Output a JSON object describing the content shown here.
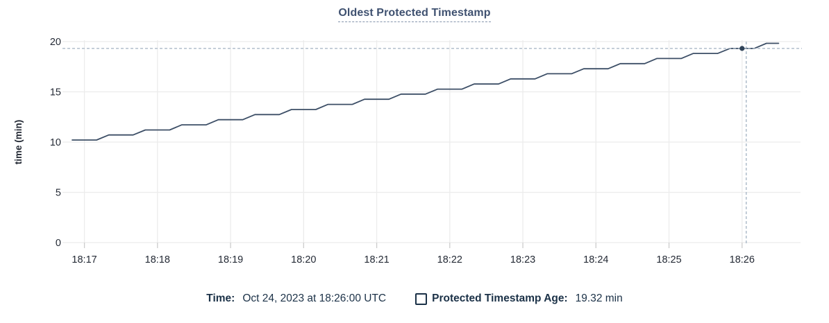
{
  "title": {
    "text": "Oldest Protected Timestamp"
  },
  "legend": {
    "time_key": "Time:",
    "time_value": "Oct 24, 2023 at 18:26:00 UTC",
    "series_key": "Protected Timestamp Age:",
    "series_value": "19.32 min",
    "checkbox_checked": false
  },
  "colors": {
    "line": "#3c4e66",
    "dot": "#2f4258",
    "crosshair": "#a2b2c2",
    "grid": "#ececec",
    "tick": "#cccccc",
    "axis_text": "#242a35",
    "title_text": "#3f5170",
    "legend_text": "#1b3147",
    "background": "#ffffff"
  },
  "chart_data": {
    "type": "line",
    "title": "Oldest Protected Timestamp",
    "xlabel": "",
    "ylabel": "time (min)",
    "ylim": [
      0,
      20
    ],
    "yticks": [
      0,
      5,
      10,
      15,
      20
    ],
    "xtick_labels": [
      "18:17",
      "18:18",
      "18:19",
      "18:20",
      "18:21",
      "18:22",
      "18:23",
      "18:24",
      "18:25",
      "18:26"
    ],
    "x_range": [
      "18:16:42",
      "18:26:48"
    ],
    "grid": true,
    "legend_position": "bottom",
    "series": [
      {
        "name": "Protected Timestamp Age",
        "unit": "min",
        "points": [
          [
            "18:16:50",
            10.21
          ],
          [
            "18:17:00",
            10.21
          ],
          [
            "18:17:10",
            10.21
          ],
          [
            "18:17:20",
            10.71
          ],
          [
            "18:17:30",
            10.71
          ],
          [
            "18:17:40",
            10.71
          ],
          [
            "18:17:50",
            11.21
          ],
          [
            "18:18:00",
            11.21
          ],
          [
            "18:18:10",
            11.21
          ],
          [
            "18:18:20",
            11.72
          ],
          [
            "18:18:30",
            11.72
          ],
          [
            "18:18:40",
            11.72
          ],
          [
            "18:18:50",
            12.23
          ],
          [
            "18:19:00",
            12.23
          ],
          [
            "18:19:10",
            12.23
          ],
          [
            "18:19:20",
            12.74
          ],
          [
            "18:19:30",
            12.74
          ],
          [
            "18:19:40",
            12.74
          ],
          [
            "18:19:50",
            13.24
          ],
          [
            "18:20:00",
            13.24
          ],
          [
            "18:20:10",
            13.24
          ],
          [
            "18:20:20",
            13.75
          ],
          [
            "18:20:30",
            13.75
          ],
          [
            "18:20:40",
            13.75
          ],
          [
            "18:20:50",
            14.26
          ],
          [
            "18:21:00",
            14.26
          ],
          [
            "18:21:10",
            14.26
          ],
          [
            "18:21:20",
            14.77
          ],
          [
            "18:21:30",
            14.77
          ],
          [
            "18:21:40",
            14.77
          ],
          [
            "18:21:50",
            15.27
          ],
          [
            "18:22:00",
            15.27
          ],
          [
            "18:22:10",
            15.27
          ],
          [
            "18:22:20",
            15.78
          ],
          [
            "18:22:30",
            15.78
          ],
          [
            "18:22:40",
            15.78
          ],
          [
            "18:22:50",
            16.29
          ],
          [
            "18:23:00",
            16.29
          ],
          [
            "18:23:10",
            16.29
          ],
          [
            "18:23:20",
            16.8
          ],
          [
            "18:23:30",
            16.8
          ],
          [
            "18:23:40",
            16.8
          ],
          [
            "18:23:50",
            17.3
          ],
          [
            "18:24:00",
            17.3
          ],
          [
            "18:24:10",
            17.3
          ],
          [
            "18:24:20",
            17.81
          ],
          [
            "18:24:30",
            17.81
          ],
          [
            "18:24:40",
            17.81
          ],
          [
            "18:24:50",
            18.32
          ],
          [
            "18:25:00",
            18.32
          ],
          [
            "18:25:10",
            18.32
          ],
          [
            "18:25:20",
            18.82
          ],
          [
            "18:25:30",
            18.82
          ],
          [
            "18:25:40",
            18.82
          ],
          [
            "18:25:50",
            19.32
          ],
          [
            "18:26:00",
            19.32
          ],
          [
            "18:26:10",
            19.32
          ],
          [
            "18:26:20",
            19.83
          ],
          [
            "18:26:30",
            19.83
          ]
        ]
      }
    ],
    "crosshair": {
      "time": "18:26:00",
      "value": 19.32
    }
  }
}
